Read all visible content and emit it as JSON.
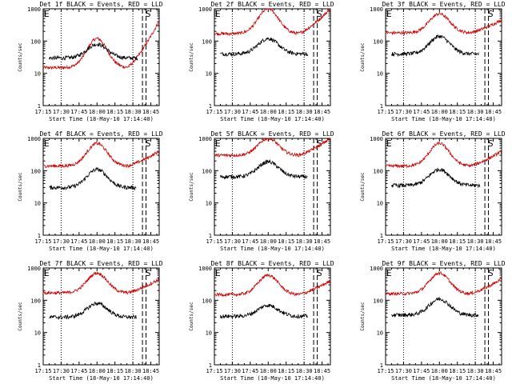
{
  "figure": {
    "background": "#ffffff",
    "colors": {
      "events": "#000000",
      "lld": "#d00000",
      "axes": "#000000"
    }
  },
  "chart_data": [
    {
      "type": "line",
      "title": "Det 1f BLACK = Events, RED = LLD",
      "xlabel": "Start Time (18-May-10 17:14:40)",
      "ylabel": "Counts/sec",
      "xlim": [
        "17:15",
        "18:52"
      ],
      "ylim": [
        1,
        1000
      ],
      "yscale": "log",
      "xtick_labels": [
        "17:15",
        "17:30",
        "17:45",
        "18:00",
        "18:15",
        "18:30",
        "18:45"
      ],
      "ytick_labels": [
        "1",
        "10",
        "100",
        "1000"
      ],
      "markers": [
        {
          "label": "E",
          "time": "17:15"
        },
        {
          "label": "S",
          "time": "18:40"
        }
      ],
      "dotted_vlines": [
        "17:30",
        "18:30"
      ],
      "dashed_vlines": [
        "18:38",
        "18:41"
      ],
      "grid": false,
      "legend": "none",
      "profile": {
        "lld": {
          "base": 15,
          "peak": 120,
          "end": 420
        },
        "events": {
          "base": 30,
          "peak": 80,
          "start": "17:20",
          "end": "18:34"
        }
      }
    },
    {
      "type": "line",
      "title": "Det 2f BLACK = Events, RED = LLD",
      "xlabel": "Start Time (18-May-10 17:14:40)",
      "ylabel": "Counts/sec",
      "xlim": [
        "17:15",
        "18:52"
      ],
      "ylim": [
        1,
        1000
      ],
      "yscale": "log",
      "xtick_labels": [
        "17:15",
        "17:30",
        "17:45",
        "18:00",
        "18:15",
        "18:30",
        "18:45"
      ],
      "ytick_labels": [
        "1",
        "10",
        "100",
        "1000"
      ],
      "markers": [
        {
          "label": "E",
          "time": "17:15"
        },
        {
          "label": "S",
          "time": "18:40"
        }
      ],
      "dotted_vlines": [
        "17:30",
        "18:30"
      ],
      "dashed_vlines": [
        "18:38",
        "18:41"
      ],
      "grid": false,
      "legend": "none",
      "profile": {
        "lld": {
          "base": 170,
          "peak": 1000,
          "end": 1000
        },
        "events": {
          "base": 40,
          "peak": 120,
          "start": "17:20",
          "end": "18:33"
        }
      }
    },
    {
      "type": "line",
      "title": "Det 3f BLACK = Events, RED = LLD",
      "xlabel": "Start Time (18-May-10 17:14:40)",
      "ylabel": "Counts/sec",
      "xlim": [
        "17:15",
        "18:52"
      ],
      "ylim": [
        1,
        1000
      ],
      "yscale": "log",
      "xtick_labels": [
        "17:15",
        "17:30",
        "17:45",
        "18:00",
        "18:15",
        "18:30",
        "18:45"
      ],
      "ytick_labels": [
        "1",
        "10",
        "100",
        "1000"
      ],
      "markers": [
        {
          "label": "E",
          "time": "17:15"
        },
        {
          "label": "S",
          "time": "18:40"
        }
      ],
      "dotted_vlines": [
        "17:30",
        "18:30"
      ],
      "dashed_vlines": [
        "18:38",
        "18:41"
      ],
      "grid": false,
      "legend": "none",
      "profile": {
        "lld": {
          "base": 180,
          "peak": 700,
          "end": 450
        },
        "events": {
          "base": 40,
          "peak": 140,
          "start": "17:20",
          "end": "18:33"
        }
      }
    },
    {
      "type": "line",
      "title": "Det 4f BLACK = Events, RED = LLD",
      "xlabel": "Start Time (18-May-10 17:14:40)",
      "ylabel": "Counts/sec",
      "xlim": [
        "17:15",
        "18:52"
      ],
      "ylim": [
        1,
        1000
      ],
      "yscale": "log",
      "xtick_labels": [
        "17:15",
        "17:30",
        "17:45",
        "18:00",
        "18:15",
        "18:30",
        "18:45"
      ],
      "ytick_labels": [
        "1",
        "10",
        "100",
        "1000"
      ],
      "markers": [
        {
          "label": "E",
          "time": "17:15"
        },
        {
          "label": "S",
          "time": "18:40"
        }
      ],
      "dotted_vlines": [
        "17:30",
        "18:30"
      ],
      "dashed_vlines": [
        "18:38",
        "18:41"
      ],
      "grid": false,
      "legend": "none",
      "profile": {
        "lld": {
          "base": 140,
          "peak": 700,
          "end": 400
        },
        "events": {
          "base": 30,
          "peak": 110,
          "start": "17:20",
          "end": "18:33"
        }
      }
    },
    {
      "type": "line",
      "title": "Det 5f BLACK = Events, RED = LLD",
      "xlabel": "Start Time (18-May-10 17:14:40)",
      "ylabel": "Counts/sec",
      "xlim": [
        "17:15",
        "18:52"
      ],
      "ylim": [
        1,
        1000
      ],
      "yscale": "log",
      "xtick_labels": [
        "17:15",
        "17:30",
        "17:45",
        "18:00",
        "18:15",
        "18:30",
        "18:45"
      ],
      "ytick_labels": [
        "1",
        "10",
        "100",
        "1000"
      ],
      "markers": [
        {
          "label": "E",
          "time": "17:15"
        },
        {
          "label": "S",
          "time": "18:40"
        }
      ],
      "dotted_vlines": [
        "17:30",
        "18:30"
      ],
      "dashed_vlines": [
        "18:38",
        "18:41"
      ],
      "grid": false,
      "legend": "none",
      "profile": {
        "lld": {
          "base": 300,
          "peak": 1000,
          "end": 1000
        },
        "events": {
          "base": 65,
          "peak": 190,
          "start": "17:20",
          "end": "18:33"
        }
      }
    },
    {
      "type": "line",
      "title": "Det 6f BLACK = Events, RED = LLD",
      "xlabel": "Start Time (18-May-10 17:14:40)",
      "ylabel": "Counts/sec",
      "xlim": [
        "17:15",
        "18:52"
      ],
      "ylim": [
        1,
        1000
      ],
      "yscale": "log",
      "xtick_labels": [
        "17:15",
        "17:30",
        "17:45",
        "18:00",
        "18:15",
        "18:30",
        "18:45"
      ],
      "ytick_labels": [
        "1",
        "10",
        "100",
        "1000"
      ],
      "markers": [
        {
          "label": "E",
          "time": "17:15"
        },
        {
          "label": "S",
          "time": "18:40"
        }
      ],
      "dotted_vlines": [
        "17:30",
        "18:30"
      ],
      "dashed_vlines": [
        "18:38",
        "18:41"
      ],
      "grid": false,
      "legend": "none",
      "profile": {
        "lld": {
          "base": 140,
          "peak": 700,
          "end": 400
        },
        "events": {
          "base": 35,
          "peak": 110,
          "start": "17:20",
          "end": "18:34"
        }
      }
    },
    {
      "type": "line",
      "title": "Det 7f BLACK = Events, RED = LLD",
      "xlabel": "Start Time (18-May-10 17:14:40)",
      "ylabel": "Counts/sec",
      "xlim": [
        "17:15",
        "18:52"
      ],
      "ylim": [
        1,
        1000
      ],
      "yscale": "log",
      "xtick_labels": [
        "17:15",
        "17:30",
        "17:45",
        "18:00",
        "18:15",
        "18:30",
        "18:45"
      ],
      "ytick_labels": [
        "1",
        "10",
        "100",
        "1000"
      ],
      "markers": [
        {
          "label": "E",
          "time": "17:15"
        },
        {
          "label": "S",
          "time": "18:40"
        }
      ],
      "dotted_vlines": [
        "17:30",
        "18:30"
      ],
      "dashed_vlines": [
        "18:38",
        "18:41"
      ],
      "grid": false,
      "legend": "none",
      "profile": {
        "lld": {
          "base": 170,
          "peak": 700,
          "end": 450
        },
        "events": {
          "base": 30,
          "peak": 80,
          "start": "17:20",
          "end": "18:33"
        }
      }
    },
    {
      "type": "line",
      "title": "Det 8f BLACK = Events, RED = LLD",
      "xlabel": "Start Time (18-May-10 17:14:40)",
      "ylabel": "Counts/sec",
      "xlim": [
        "17:15",
        "18:52"
      ],
      "ylim": [
        1,
        1000
      ],
      "yscale": "log",
      "xtick_labels": [
        "17:15",
        "17:30",
        "17:45",
        "18:00",
        "18:15",
        "18:30",
        "18:45"
      ],
      "ytick_labels": [
        "1",
        "10",
        "100",
        "1000"
      ],
      "markers": [
        {
          "label": "E",
          "time": "17:15"
        },
        {
          "label": "S",
          "time": "18:40"
        }
      ],
      "dotted_vlines": [
        "17:30",
        "18:30"
      ],
      "dashed_vlines": [
        "18:38",
        "18:41"
      ],
      "grid": false,
      "legend": "none",
      "profile": {
        "lld": {
          "base": 150,
          "peak": 600,
          "end": 400
        },
        "events": {
          "base": 32,
          "peak": 70,
          "start": "17:20",
          "end": "18:33"
        }
      }
    },
    {
      "type": "line",
      "title": "Det 9f BLACK = Events, RED = LLD",
      "xlabel": "Start Time (18-May-10 17:14:40)",
      "ylabel": "Counts/sec",
      "xlim": [
        "17:15",
        "18:52"
      ],
      "ylim": [
        1,
        1000
      ],
      "yscale": "log",
      "xtick_labels": [
        "17:15",
        "17:30",
        "17:45",
        "18:00",
        "18:15",
        "18:30",
        "18:45"
      ],
      "ytick_labels": [
        "1",
        "10",
        "100",
        "1000"
      ],
      "markers": [
        {
          "label": "E",
          "time": "17:15"
        },
        {
          "label": "S",
          "time": "18:40"
        }
      ],
      "dotted_vlines": [
        "17:30",
        "18:30"
      ],
      "dashed_vlines": [
        "18:38",
        "18:41"
      ],
      "grid": false,
      "legend": "none",
      "profile": {
        "lld": {
          "base": 160,
          "peak": 700,
          "end": 450
        },
        "events": {
          "base": 35,
          "peak": 110,
          "start": "17:20",
          "end": "18:33"
        }
      }
    }
  ]
}
